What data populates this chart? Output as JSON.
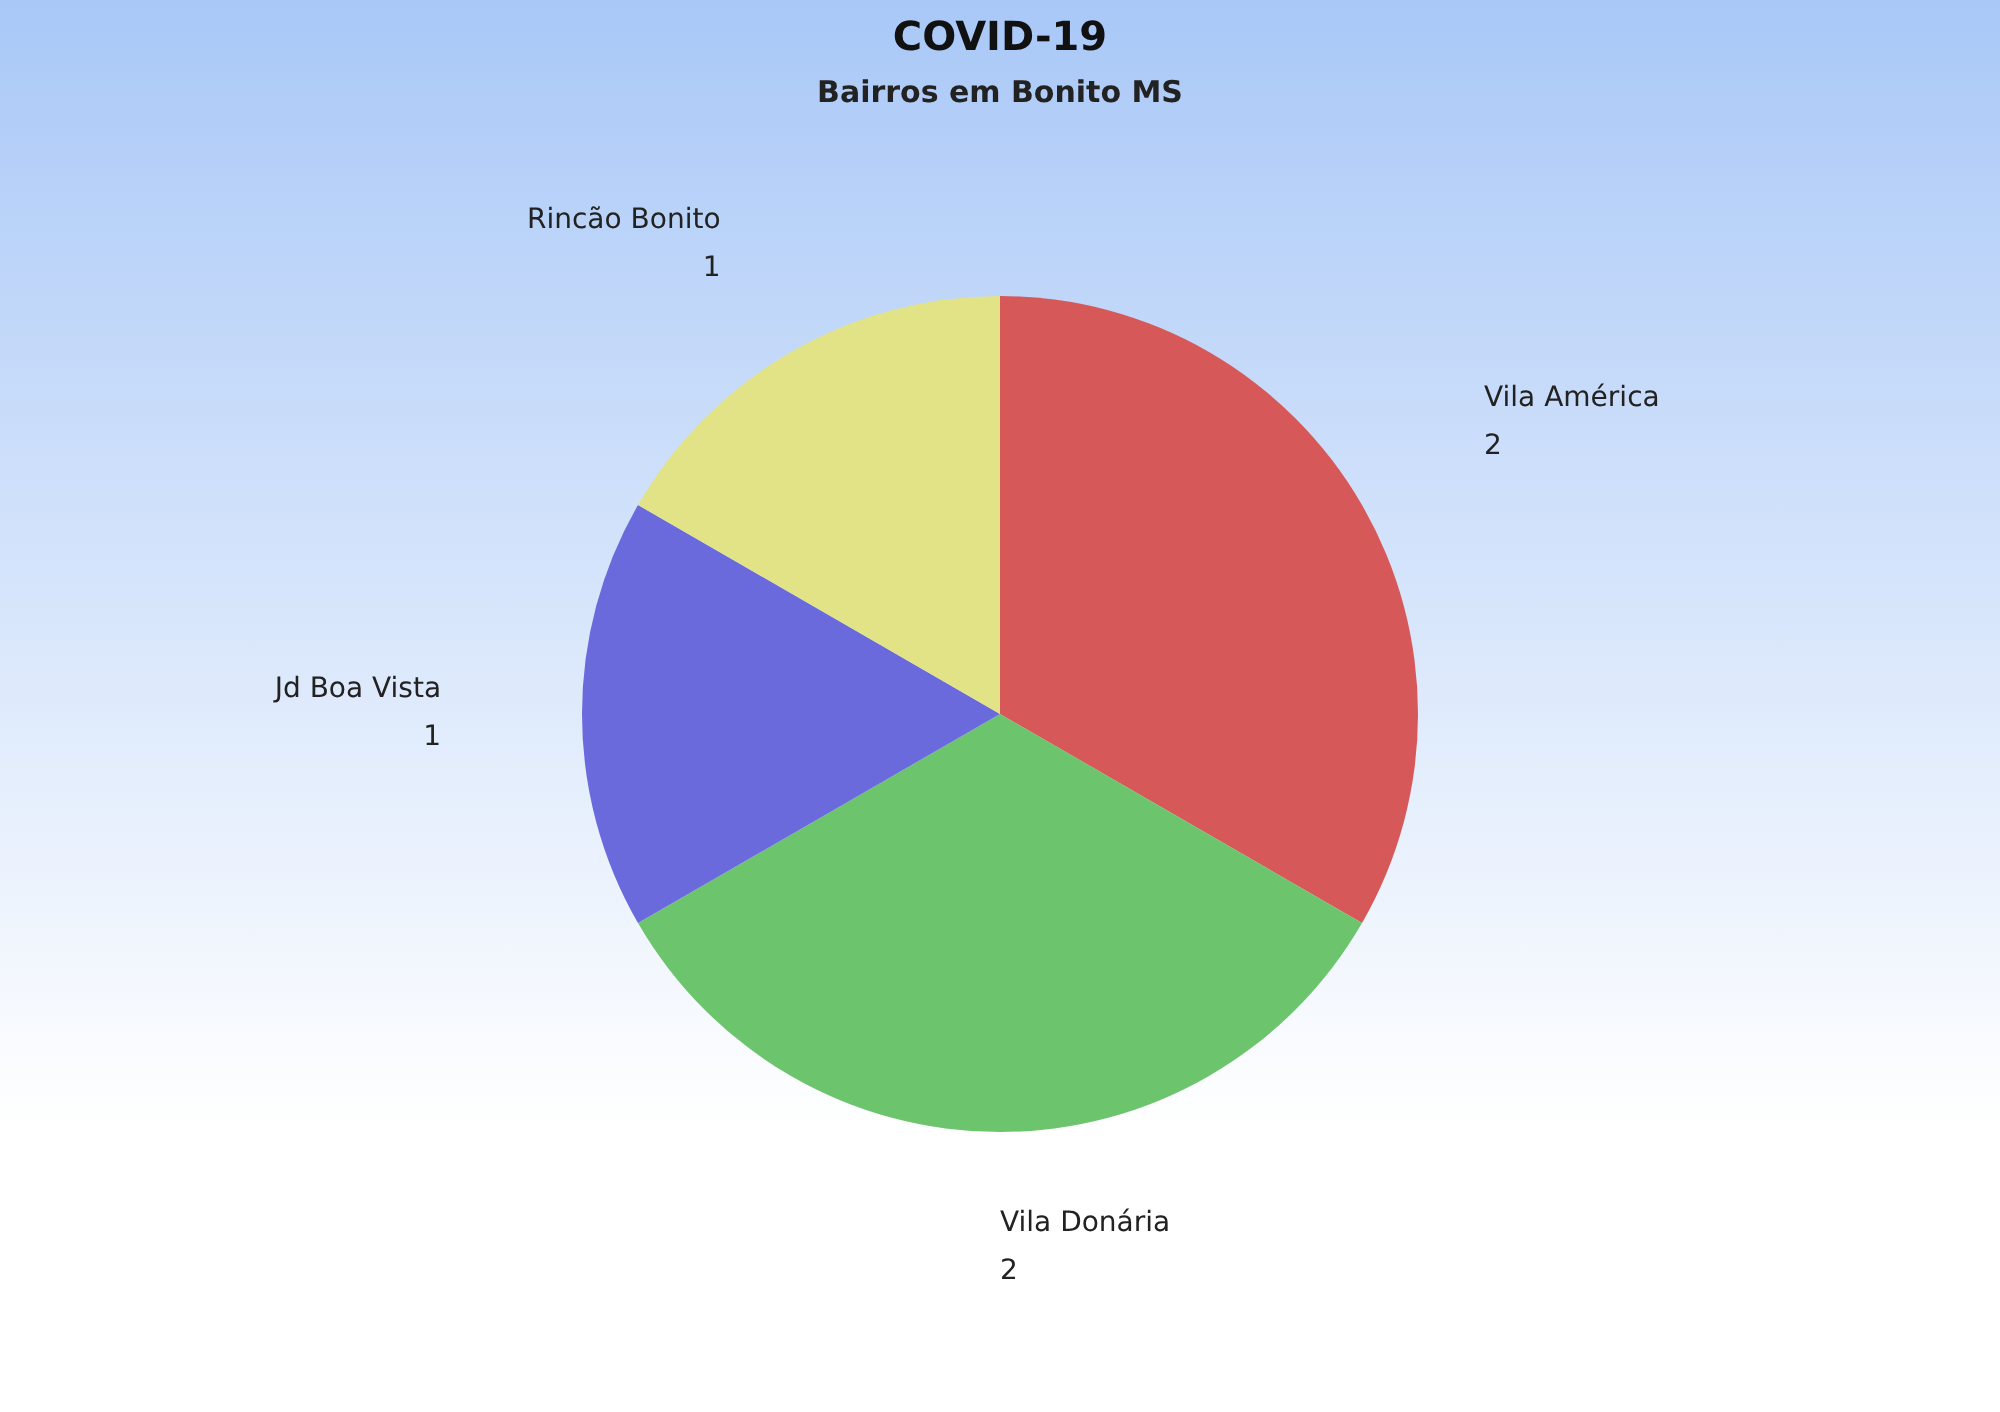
{
  "chart_data": {
    "type": "pie",
    "title": "COVID-19",
    "subtitle": "Bairros em Bonito MS",
    "categories": [
      "Vila América",
      "Vila Donária",
      "Jd Boa Vista",
      "Rincão Bonito"
    ],
    "values": [
      2,
      2,
      1,
      1
    ],
    "colors": [
      "#d65858",
      "#6cc46c",
      "#6a6adc",
      "#e2e286"
    ],
    "data_labels": true
  }
}
